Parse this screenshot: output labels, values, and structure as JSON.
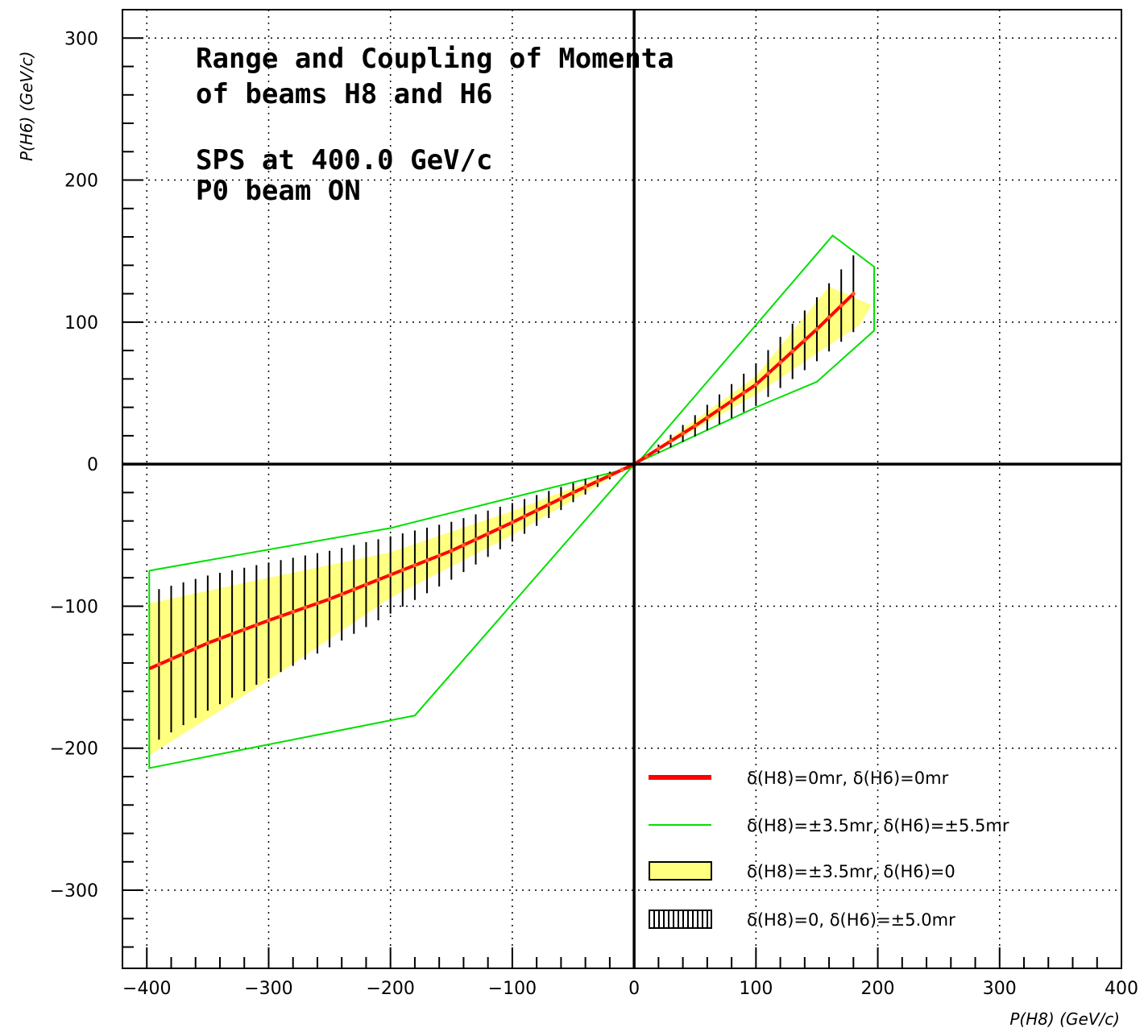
{
  "chart_data": {
    "type": "line",
    "title_lines": [
      "Range and Coupling of Momenta",
      "of beams H8 and H6",
      "",
      "SPS at 400.0 GeV/c",
      "P0 beam ON"
    ],
    "xlabel": "P(H8) (GeV/c)",
    "ylabel": "P(H6) (GeV/c)",
    "xlim": [
      -420,
      400
    ],
    "ylim": [
      -355,
      320
    ],
    "x_ticks": [
      -400,
      -300,
      -200,
      -100,
      0,
      100,
      200,
      300,
      400
    ],
    "y_ticks": [
      -300,
      -200,
      -100,
      0,
      100,
      200,
      300
    ],
    "grid": true,
    "legend_position": "bottom-right",
    "colors": {
      "central": "#ff0000",
      "envelope": "#00e000",
      "band": "#ffff80",
      "error_bars": "#000000",
      "axes": "#000000"
    },
    "series": [
      {
        "name": "δ(H8)=0mr, δ(H6)=0mr",
        "style": "thick-red-line",
        "x": [
          -398,
          -350,
          -300,
          -250,
          -200,
          -150,
          -100,
          -50,
          0,
          50,
          100,
          150,
          180
        ],
        "y": [
          -144,
          -126,
          -110,
          -95,
          -78,
          -61,
          -41,
          -20,
          0,
          27,
          56,
          95,
          120
        ]
      },
      {
        "name": "δ(H8)=±3.5mr, δ(H6)=±5.5mr",
        "style": "green-outline",
        "x": [
          -398,
          -200,
          0,
          163,
          197,
          197,
          150,
          100,
          0,
          -180,
          -398,
          -398
        ],
        "y": [
          -75,
          -45,
          -2,
          161,
          139,
          94,
          58,
          40,
          0,
          -177,
          -214,
          -75
        ]
      },
      {
        "name": "δ(H8)=±3.5mr, δ(H6)=0",
        "style": "yellow-band",
        "x": [
          -398,
          -300,
          -200,
          -100,
          0,
          100,
          160,
          195,
          185,
          150,
          100,
          0,
          -100,
          -200,
          -300,
          -398
        ],
        "y": [
          -98,
          -80,
          -62,
          -33,
          0,
          62,
          125,
          112,
          98,
          78,
          49,
          0,
          -50,
          -94,
          -152,
          -205
        ]
      },
      {
        "name": "δ(H8)=0, δ(H6)=±5.0mr",
        "style": "black-error-bars",
        "x_start": -390,
        "x_end": 180,
        "x_step": 10,
        "half_width_at_min_x": 53,
        "half_width_at_max_x": 27
      }
    ]
  }
}
